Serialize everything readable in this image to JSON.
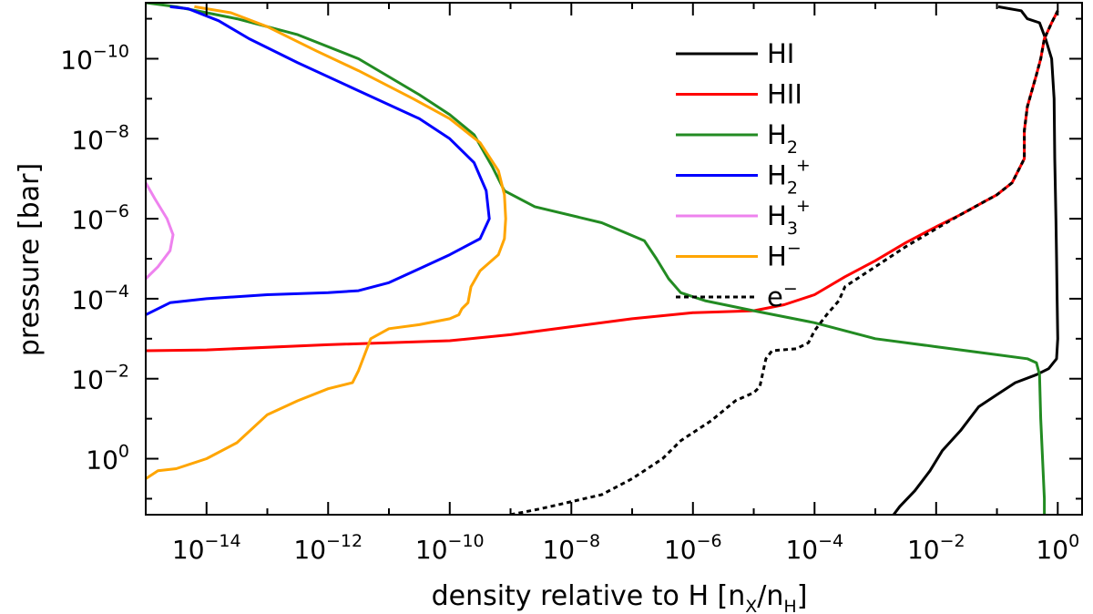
{
  "chart_data": {
    "type": "line",
    "xlabel": "density relative to H [n",
    "xlabel_sub1": "X",
    "xlabel_mid": "/n",
    "xlabel_sub2": "H",
    "xlabel_end": "]",
    "ylabel": "pressure [bar]",
    "xscale": "log",
    "yscale": "log",
    "xlim_exp": [
      -15,
      0.4
    ],
    "ylim_exp": [
      1.4,
      -11.4
    ],
    "grid": false,
    "legend_position": "top-right",
    "x_ticks": [
      {
        "base": "10",
        "exp": "−14",
        "value": -14
      },
      {
        "base": "10",
        "exp": "−12",
        "value": -12
      },
      {
        "base": "10",
        "exp": "−10",
        "value": -10
      },
      {
        "base": "10",
        "exp": "−8",
        "value": -8
      },
      {
        "base": "10",
        "exp": "−6",
        "value": -6
      },
      {
        "base": "10",
        "exp": "−4",
        "value": -4
      },
      {
        "base": "10",
        "exp": "−2",
        "value": -2
      },
      {
        "base": "10",
        "exp": "0",
        "value": 0
      }
    ],
    "y_ticks": [
      {
        "base": "10",
        "exp": "−10",
        "value": -10
      },
      {
        "base": "10",
        "exp": "−8",
        "value": -8
      },
      {
        "base": "10",
        "exp": "−6",
        "value": -6
      },
      {
        "base": "10",
        "exp": "−4",
        "value": -4
      },
      {
        "base": "10",
        "exp": "−2",
        "value": -2
      },
      {
        "base": "10",
        "exp": "0",
        "value": 0
      }
    ],
    "series": [
      {
        "name": "HI",
        "label": "HI",
        "color": "#000000",
        "dash": false,
        "points": [
          [
            -0.98,
            -11.3
          ],
          [
            -0.6,
            -11.2
          ],
          [
            -0.5,
            -11.0
          ],
          [
            -0.3,
            -10.9
          ],
          [
            -0.2,
            -10.5
          ],
          [
            -0.1,
            -10.0
          ],
          [
            -0.06,
            -9.0
          ],
          [
            -0.05,
            -7.5
          ],
          [
            -0.03,
            -6.0
          ],
          [
            -0.02,
            -5.0
          ],
          [
            -0.01,
            -4.0
          ],
          [
            0.0,
            -3.0
          ],
          [
            -0.02,
            -2.5
          ],
          [
            -0.15,
            -2.25
          ],
          [
            -0.35,
            -2.1
          ],
          [
            -0.7,
            -1.9
          ],
          [
            -1.0,
            -1.6
          ],
          [
            -1.3,
            -1.3
          ],
          [
            -1.6,
            -0.7
          ],
          [
            -1.9,
            -0.2
          ],
          [
            -2.1,
            0.3
          ],
          [
            -2.35,
            0.8
          ],
          [
            -2.6,
            1.2
          ],
          [
            -2.7,
            1.4
          ]
        ]
      },
      {
        "name": "HII",
        "label": "HII",
        "color": "#ff0000",
        "dash": false,
        "points": [
          [
            -15.0,
            -2.7
          ],
          [
            -14.0,
            -2.72
          ],
          [
            -12.0,
            -2.85
          ],
          [
            -10.0,
            -2.95
          ],
          [
            -9.0,
            -3.1
          ],
          [
            -8.0,
            -3.3
          ],
          [
            -7.0,
            -3.5
          ],
          [
            -6.0,
            -3.65
          ],
          [
            -5.0,
            -3.7
          ],
          [
            -4.5,
            -3.85
          ],
          [
            -4.0,
            -4.1
          ],
          [
            -3.5,
            -4.55
          ],
          [
            -3.0,
            -4.95
          ],
          [
            -2.5,
            -5.4
          ],
          [
            -2.0,
            -5.8
          ],
          [
            -1.6,
            -6.1
          ],
          [
            -1.3,
            -6.35
          ],
          [
            -1.0,
            -6.6
          ],
          [
            -0.75,
            -6.9
          ],
          [
            -0.55,
            -7.5
          ],
          [
            -0.55,
            -8.2
          ],
          [
            -0.5,
            -8.8
          ],
          [
            -0.35,
            -9.6
          ],
          [
            -0.28,
            -10.0
          ],
          [
            -0.22,
            -10.5
          ],
          [
            -0.1,
            -10.9
          ],
          [
            0.0,
            -11.2
          ]
        ]
      },
      {
        "name": "H2",
        "label": "H",
        "sub": "2",
        "sup": "",
        "color": "#228b22",
        "dash": false,
        "points": [
          [
            -15.0,
            -11.4
          ],
          [
            -14.5,
            -11.3
          ],
          [
            -13.5,
            -11.0
          ],
          [
            -12.5,
            -10.6
          ],
          [
            -11.5,
            -10.0
          ],
          [
            -10.5,
            -9.1
          ],
          [
            -10.0,
            -8.6
          ],
          [
            -9.6,
            -8.1
          ],
          [
            -9.3,
            -7.3
          ],
          [
            -9.1,
            -6.7
          ],
          [
            -8.6,
            -6.3
          ],
          [
            -7.5,
            -5.9
          ],
          [
            -6.8,
            -5.45
          ],
          [
            -6.6,
            -5.0
          ],
          [
            -6.4,
            -4.5
          ],
          [
            -6.2,
            -4.15
          ],
          [
            -5.8,
            -3.95
          ],
          [
            -5.0,
            -3.7
          ],
          [
            -4.0,
            -3.4
          ],
          [
            -3.0,
            -3.0
          ],
          [
            -2.0,
            -2.8
          ],
          [
            -1.0,
            -2.6
          ],
          [
            -0.5,
            -2.5
          ],
          [
            -0.35,
            -2.4
          ],
          [
            -0.3,
            -2.1
          ],
          [
            -0.28,
            -1.0
          ],
          [
            -0.25,
            0.0
          ],
          [
            -0.22,
            1.0
          ],
          [
            -0.22,
            1.4
          ]
        ]
      },
      {
        "name": "H2+",
        "label": "H",
        "sub": "2",
        "sup": "+",
        "color": "#0000ff",
        "dash": false,
        "points": [
          [
            -14.6,
            -11.3
          ],
          [
            -14.3,
            -11.25
          ],
          [
            -13.8,
            -10.95
          ],
          [
            -13.3,
            -10.5
          ],
          [
            -12.5,
            -9.9
          ],
          [
            -11.5,
            -9.2
          ],
          [
            -10.5,
            -8.5
          ],
          [
            -10.0,
            -8.0
          ],
          [
            -9.6,
            -7.4
          ],
          [
            -9.4,
            -6.7
          ],
          [
            -9.35,
            -6.0
          ],
          [
            -9.5,
            -5.5
          ],
          [
            -10.0,
            -5.1
          ],
          [
            -10.5,
            -4.75
          ],
          [
            -11.0,
            -4.4
          ],
          [
            -11.5,
            -4.2
          ],
          [
            -12.0,
            -4.15
          ],
          [
            -13.0,
            -4.1
          ],
          [
            -14.0,
            -4.0
          ],
          [
            -14.6,
            -3.9
          ],
          [
            -15.0,
            -3.6
          ]
        ]
      },
      {
        "name": "H3+",
        "label": "H",
        "sub": "3",
        "sup": "+",
        "color": "#ee82ee",
        "dash": false,
        "points": [
          [
            -15.0,
            -6.9
          ],
          [
            -14.85,
            -6.5
          ],
          [
            -14.65,
            -6.0
          ],
          [
            -14.55,
            -5.6
          ],
          [
            -14.6,
            -5.2
          ],
          [
            -14.8,
            -4.8
          ],
          [
            -15.0,
            -4.5
          ]
        ]
      },
      {
        "name": "H-",
        "label": "H",
        "sub": "",
        "sup": "−",
        "color": "#ffa500",
        "dash": false,
        "points": [
          [
            -14.2,
            -11.3
          ],
          [
            -13.6,
            -11.15
          ],
          [
            -13.0,
            -10.8
          ],
          [
            -12.2,
            -10.2
          ],
          [
            -11.5,
            -9.7
          ],
          [
            -10.6,
            -9.0
          ],
          [
            -10.0,
            -8.5
          ],
          [
            -9.5,
            -7.9
          ],
          [
            -9.2,
            -7.2
          ],
          [
            -9.1,
            -6.6
          ],
          [
            -9.08,
            -6.0
          ],
          [
            -9.1,
            -5.5
          ],
          [
            -9.2,
            -5.1
          ],
          [
            -9.5,
            -4.7
          ],
          [
            -9.65,
            -4.3
          ],
          [
            -9.7,
            -3.9
          ],
          [
            -9.8,
            -3.75
          ],
          [
            -9.85,
            -3.6
          ],
          [
            -10.0,
            -3.5
          ],
          [
            -10.5,
            -3.35
          ],
          [
            -11.0,
            -3.25
          ],
          [
            -11.3,
            -3.0
          ],
          [
            -11.4,
            -2.6
          ],
          [
            -11.5,
            -2.2
          ],
          [
            -11.6,
            -1.9
          ],
          [
            -12.0,
            -1.75
          ],
          [
            -12.5,
            -1.45
          ],
          [
            -13.0,
            -1.1
          ],
          [
            -13.5,
            -0.4
          ],
          [
            -14.0,
            0.0
          ],
          [
            -14.5,
            0.25
          ],
          [
            -14.8,
            0.3
          ],
          [
            -15.0,
            0.5
          ]
        ]
      },
      {
        "name": "e-",
        "label": "e",
        "sub": "",
        "sup": "−",
        "color": "#000000",
        "dash": true,
        "points": [
          [
            -9.0,
            1.4
          ],
          [
            -8.5,
            1.25
          ],
          [
            -7.5,
            0.9
          ],
          [
            -7.0,
            0.5
          ],
          [
            -6.5,
            0.0
          ],
          [
            -6.2,
            -0.45
          ],
          [
            -5.7,
            -0.95
          ],
          [
            -5.3,
            -1.45
          ],
          [
            -5.0,
            -1.65
          ],
          [
            -4.9,
            -1.8
          ],
          [
            -4.85,
            -2.15
          ],
          [
            -4.8,
            -2.5
          ],
          [
            -4.7,
            -2.7
          ],
          [
            -4.3,
            -2.75
          ],
          [
            -4.1,
            -2.9
          ],
          [
            -4.0,
            -3.2
          ],
          [
            -3.8,
            -3.6
          ],
          [
            -3.6,
            -3.95
          ],
          [
            -3.5,
            -4.3
          ],
          [
            -3.0,
            -4.8
          ],
          [
            -2.5,
            -5.3
          ],
          [
            -2.0,
            -5.75
          ],
          [
            -1.6,
            -6.1
          ],
          [
            -1.3,
            -6.35
          ],
          [
            -1.0,
            -6.6
          ],
          [
            -0.75,
            -6.9
          ],
          [
            -0.55,
            -7.5
          ],
          [
            -0.55,
            -8.2
          ],
          [
            -0.5,
            -8.8
          ],
          [
            -0.35,
            -9.6
          ],
          [
            -0.28,
            -10.0
          ],
          [
            -0.22,
            -10.5
          ],
          [
            -0.1,
            -10.9
          ],
          [
            0.0,
            -11.2
          ]
        ]
      }
    ]
  }
}
